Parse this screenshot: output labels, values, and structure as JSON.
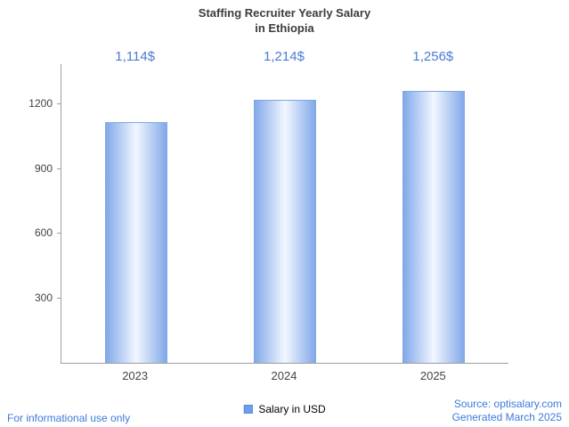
{
  "title": {
    "line1": "Staffing Recruiter Yearly Salary",
    "line2": "in Ethiopia"
  },
  "chart_data": {
    "type": "bar",
    "title": "Staffing Recruiter Yearly Salary in Ethiopia",
    "categories": [
      "2023",
      "2024",
      "2025"
    ],
    "values": [
      1114,
      1214,
      1256
    ],
    "value_labels": [
      "1,114$",
      "1,214$",
      "1,256$"
    ],
    "xlabel": "",
    "ylabel": "",
    "ylim": [
      0,
      1380
    ],
    "yticks": [
      300,
      600,
      900,
      1200
    ],
    "grid": false,
    "legend": {
      "label": "Salary in USD",
      "position": "bottom"
    },
    "colors": {
      "bar_edge": "#7FA6E8",
      "bar_center": "#F2F7FF",
      "legend_marker": "#6D9EEB",
      "value_label": "#4A7CD6",
      "axis": "#9E9E9E",
      "tick_text": "#444444",
      "title_text": "#3C3C3C"
    }
  },
  "footer": {
    "disclaimer": "For informational use only",
    "source": "Source: optisalary.com",
    "generated": "Generated March 2025",
    "link_color": "#3D7BD9"
  }
}
